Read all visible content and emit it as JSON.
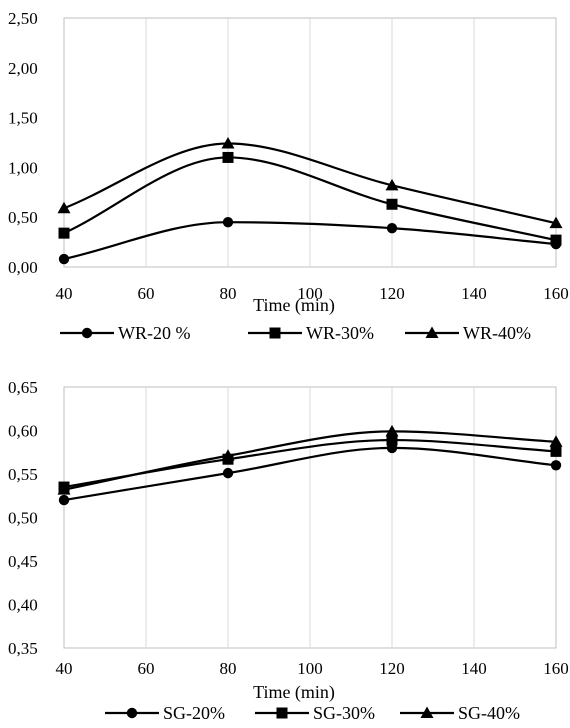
{
  "chart_data": [
    {
      "type": "line",
      "smooth": true,
      "xlabel": "Time (min)",
      "ylabel": "",
      "xlim": [
        40,
        160
      ],
      "ylim": [
        0,
        2.5
      ],
      "xticks": [
        "40",
        "60",
        "80",
        "100",
        "120",
        "140",
        "160"
      ],
      "yticks": [
        "0,00",
        "0,50",
        "1,00",
        "1,50",
        "2,00",
        "2,50"
      ],
      "grid": "vertical",
      "legend_position": "bottom",
      "series": [
        {
          "name": "WR-20 %",
          "marker": "circle",
          "x": [
            40,
            80,
            120,
            160
          ],
          "y": [
            0.08,
            0.45,
            0.39,
            0.23
          ]
        },
        {
          "name": "WR-30%",
          "marker": "square",
          "x": [
            40,
            80,
            120,
            160
          ],
          "y": [
            0.34,
            1.1,
            0.63,
            0.27
          ]
        },
        {
          "name": "WR-40%",
          "marker": "triangle",
          "x": [
            40,
            80,
            120,
            160
          ],
          "y": [
            0.59,
            1.24,
            0.82,
            0.44
          ]
        }
      ]
    },
    {
      "type": "line",
      "smooth": true,
      "xlabel": "Time (min)",
      "ylabel": "",
      "xlim": [
        40,
        160
      ],
      "ylim": [
        0.35,
        0.65
      ],
      "xticks": [
        "40",
        "60",
        "80",
        "100",
        "120",
        "140",
        "160"
      ],
      "yticks": [
        "0,35",
        "0,40",
        "0,45",
        "0,50",
        "0,55",
        "0,60",
        "0,65"
      ],
      "grid": "vertical",
      "legend_position": "bottom",
      "series": [
        {
          "name": "SG-20%",
          "marker": "circle",
          "x": [
            40,
            80,
            120,
            160
          ],
          "y": [
            0.52,
            0.551,
            0.58,
            0.56
          ]
        },
        {
          "name": "SG-30%",
          "marker": "square",
          "x": [
            40,
            80,
            120,
            160
          ],
          "y": [
            0.535,
            0.567,
            0.589,
            0.576
          ]
        },
        {
          "name": "SG-40%",
          "marker": "triangle",
          "x": [
            40,
            80,
            120,
            160
          ],
          "y": [
            0.532,
            0.571,
            0.599,
            0.587
          ]
        }
      ]
    }
  ]
}
